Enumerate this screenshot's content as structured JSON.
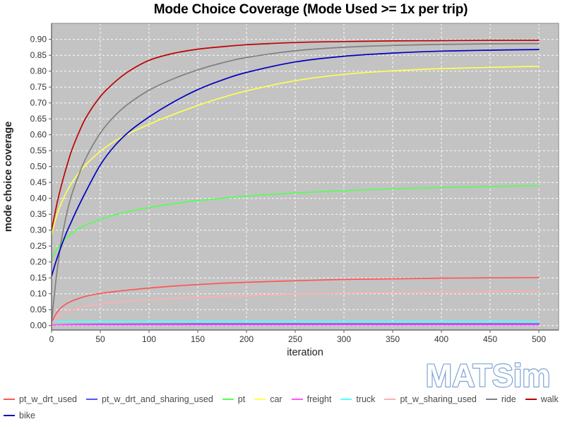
{
  "title": {
    "text": "Mode Choice Coverage (Mode Used >= 1x per trip)"
  },
  "logo": {
    "text": "MATSim",
    "fill": "#ffffff",
    "outline": "#7da2d2"
  },
  "colors": {
    "plot_bg": "#c3c3c3",
    "grid": "#ffffff",
    "plot_border": "#8a8a8a",
    "axis_line": "#555555",
    "tick_mark": "#555555",
    "tick_text": "#333333",
    "axis_label_text": "#222222",
    "title_text": "#000000",
    "legend_text": "#4a4a4a"
  },
  "legend": {
    "rows": [
      [
        "pt_w_drt_used",
        "pt_w_drt_and_sharing_used",
        "pt",
        "car",
        "freight",
        "truck",
        "pt_w_sharing_used",
        "ride",
        "walk"
      ],
      [
        "bike"
      ]
    ]
  },
  "chart_data": {
    "type": "line",
    "title": "Mode Choice Coverage (Mode Used >= 1x per trip)",
    "xlabel": "iteration",
    "ylabel": "mode choice coverage",
    "xlim": [
      0,
      500
    ],
    "ylim": [
      0,
      0.95
    ],
    "x_ticks": [
      0,
      50,
      100,
      150,
      200,
      250,
      300,
      350,
      400,
      450,
      500
    ],
    "y_ticks": [
      0.0,
      0.05,
      0.1,
      0.15,
      0.2,
      0.25,
      0.3,
      0.35,
      0.4,
      0.45,
      0.5,
      0.55,
      0.6,
      0.65,
      0.7,
      0.75,
      0.8,
      0.85,
      0.9
    ],
    "grid": "white dashed gridlines on gray plot background",
    "legend_position": "bottom-left, two rows",
    "series": [
      {
        "name": "pt_w_drt_used",
        "color": "#ff5555",
        "points": [
          [
            0,
            0.008
          ],
          [
            3,
            0.028
          ],
          [
            6,
            0.043
          ],
          [
            10,
            0.057
          ],
          [
            15,
            0.068
          ],
          [
            20,
            0.076
          ],
          [
            25,
            0.082
          ],
          [
            35,
            0.092
          ],
          [
            50,
            0.101
          ],
          [
            65,
            0.107
          ],
          [
            80,
            0.112
          ],
          [
            100,
            0.118
          ],
          [
            125,
            0.124
          ],
          [
            150,
            0.129
          ],
          [
            175,
            0.133
          ],
          [
            200,
            0.136
          ],
          [
            250,
            0.141
          ],
          [
            300,
            0.145
          ],
          [
            350,
            0.147
          ],
          [
            400,
            0.149
          ],
          [
            450,
            0.15
          ],
          [
            500,
            0.151
          ]
        ]
      },
      {
        "name": "pt_w_drt_and_sharing_used",
        "color": "#5555ff",
        "points": [
          [
            0,
            0.002
          ],
          [
            15,
            0.003
          ],
          [
            50,
            0.004
          ],
          [
            150,
            0.005
          ],
          [
            500,
            0.005
          ]
        ]
      },
      {
        "name": "pt",
        "color": "#55ff55",
        "points": [
          [
            0,
            0.21
          ],
          [
            3,
            0.228
          ],
          [
            6,
            0.243
          ],
          [
            10,
            0.26
          ],
          [
            15,
            0.276
          ],
          [
            20,
            0.289
          ],
          [
            25,
            0.3
          ],
          [
            35,
            0.316
          ],
          [
            50,
            0.334
          ],
          [
            65,
            0.348
          ],
          [
            80,
            0.359
          ],
          [
            100,
            0.371
          ],
          [
            125,
            0.383
          ],
          [
            150,
            0.393
          ],
          [
            175,
            0.4
          ],
          [
            200,
            0.407
          ],
          [
            250,
            0.417
          ],
          [
            300,
            0.424
          ],
          [
            350,
            0.43
          ],
          [
            400,
            0.434
          ],
          [
            450,
            0.437
          ],
          [
            500,
            0.44
          ]
        ]
      },
      {
        "name": "car",
        "color": "#ffff55",
        "points": [
          [
            0,
            0.285
          ],
          [
            3,
            0.322
          ],
          [
            6,
            0.352
          ],
          [
            10,
            0.385
          ],
          [
            15,
            0.418
          ],
          [
            20,
            0.445
          ],
          [
            25,
            0.468
          ],
          [
            35,
            0.505
          ],
          [
            50,
            0.548
          ],
          [
            65,
            0.58
          ],
          [
            80,
            0.605
          ],
          [
            100,
            0.633
          ],
          [
            125,
            0.664
          ],
          [
            150,
            0.692
          ],
          [
            175,
            0.717
          ],
          [
            200,
            0.738
          ],
          [
            250,
            0.77
          ],
          [
            300,
            0.79
          ],
          [
            350,
            0.801
          ],
          [
            400,
            0.808
          ],
          [
            450,
            0.812
          ],
          [
            500,
            0.815
          ]
        ]
      },
      {
        "name": "freight",
        "color": "#ff55ff",
        "points": [
          [
            0,
            0.002
          ],
          [
            500,
            0.002
          ]
        ]
      },
      {
        "name": "truck",
        "color": "#55ffff",
        "points": [
          [
            0,
            0.012
          ],
          [
            50,
            0.013
          ],
          [
            500,
            0.013
          ]
        ]
      },
      {
        "name": "pt_w_sharing_used",
        "color": "#ffafaf",
        "points": [
          [
            0,
            0.004
          ],
          [
            3,
            0.016
          ],
          [
            6,
            0.026
          ],
          [
            10,
            0.035
          ],
          [
            15,
            0.043
          ],
          [
            20,
            0.049
          ],
          [
            25,
            0.053
          ],
          [
            35,
            0.061
          ],
          [
            50,
            0.068
          ],
          [
            65,
            0.073
          ],
          [
            80,
            0.077
          ],
          [
            100,
            0.081
          ],
          [
            125,
            0.085
          ],
          [
            150,
            0.089
          ],
          [
            175,
            0.092
          ],
          [
            200,
            0.094
          ],
          [
            250,
            0.099
          ],
          [
            300,
            0.102
          ],
          [
            350,
            0.104
          ],
          [
            400,
            0.106
          ],
          [
            450,
            0.107
          ],
          [
            500,
            0.108
          ]
        ]
      },
      {
        "name": "ride",
        "color": "#808080",
        "points": [
          [
            0,
            0.01
          ],
          [
            3,
            0.1
          ],
          [
            6,
            0.18
          ],
          [
            10,
            0.265
          ],
          [
            15,
            0.345
          ],
          [
            20,
            0.405
          ],
          [
            25,
            0.45
          ],
          [
            35,
            0.525
          ],
          [
            50,
            0.605
          ],
          [
            65,
            0.66
          ],
          [
            80,
            0.7
          ],
          [
            100,
            0.74
          ],
          [
            125,
            0.776
          ],
          [
            150,
            0.804
          ],
          [
            175,
            0.826
          ],
          [
            200,
            0.843
          ],
          [
            250,
            0.864
          ],
          [
            300,
            0.875
          ],
          [
            350,
            0.881
          ],
          [
            400,
            0.884
          ],
          [
            450,
            0.886
          ],
          [
            500,
            0.887
          ]
        ]
      },
      {
        "name": "walk",
        "color": "#c00000",
        "points": [
          [
            0,
            0.3
          ],
          [
            3,
            0.345
          ],
          [
            6,
            0.39
          ],
          [
            10,
            0.44
          ],
          [
            15,
            0.495
          ],
          [
            20,
            0.545
          ],
          [
            25,
            0.585
          ],
          [
            35,
            0.652
          ],
          [
            50,
            0.72
          ],
          [
            65,
            0.766
          ],
          [
            80,
            0.801
          ],
          [
            100,
            0.834
          ],
          [
            125,
            0.856
          ],
          [
            150,
            0.869
          ],
          [
            175,
            0.877
          ],
          [
            200,
            0.883
          ],
          [
            250,
            0.89
          ],
          [
            300,
            0.893
          ],
          [
            350,
            0.895
          ],
          [
            400,
            0.896
          ],
          [
            450,
            0.897
          ],
          [
            500,
            0.897
          ]
        ]
      },
      {
        "name": "bike",
        "color": "#0000c0",
        "points": [
          [
            0,
            0.155
          ],
          [
            3,
            0.186
          ],
          [
            6,
            0.215
          ],
          [
            10,
            0.25
          ],
          [
            15,
            0.29
          ],
          [
            20,
            0.324
          ],
          [
            25,
            0.358
          ],
          [
            35,
            0.42
          ],
          [
            50,
            0.505
          ],
          [
            65,
            0.566
          ],
          [
            80,
            0.611
          ],
          [
            100,
            0.656
          ],
          [
            125,
            0.703
          ],
          [
            150,
            0.742
          ],
          [
            175,
            0.772
          ],
          [
            200,
            0.796
          ],
          [
            250,
            0.829
          ],
          [
            300,
            0.847
          ],
          [
            350,
            0.857
          ],
          [
            400,
            0.863
          ],
          [
            450,
            0.866
          ],
          [
            500,
            0.868
          ]
        ]
      }
    ]
  }
}
